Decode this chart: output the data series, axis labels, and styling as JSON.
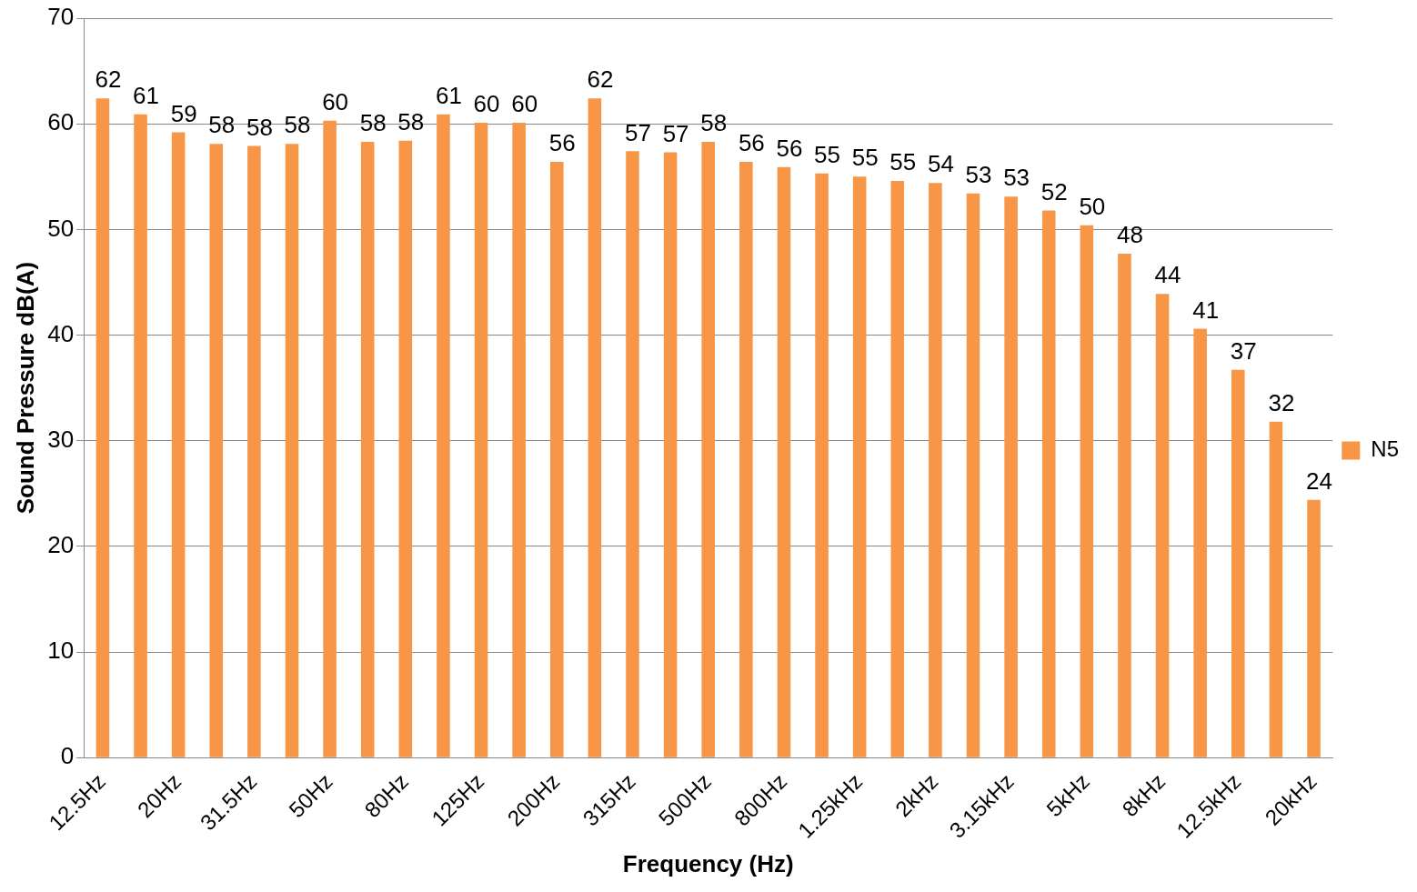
{
  "chart_data": {
    "type": "bar",
    "xlabel": "Frequency (Hz)",
    "ylabel": "Sound Pressure dB(A)",
    "categories": [
      "12.5Hz",
      null,
      "20Hz",
      null,
      "31.5Hz",
      null,
      "50Hz",
      null,
      "80Hz",
      null,
      "125Hz",
      null,
      "200Hz",
      null,
      "315Hz",
      null,
      "500Hz",
      null,
      "800Hz",
      null,
      "1.25kHz",
      null,
      "2kHz",
      null,
      "3.15kHz",
      null,
      "5kHz",
      null,
      "8kHz",
      null,
      "12.5kHz",
      null,
      "20kHz"
    ],
    "series": [
      {
        "name": "N5",
        "color": "#f79646",
        "values": [
          62.4,
          60.9,
          59.2,
          58.1,
          57.9,
          58.1,
          60.3,
          58.3,
          58.4,
          60.9,
          60.1,
          60.1,
          56.4,
          62.4,
          57.4,
          57.3,
          58.3,
          56.4,
          55.9,
          55.3,
          55.0,
          54.6,
          54.4,
          53.4,
          53.1,
          51.8,
          50.4,
          47.7,
          43.9,
          40.6,
          36.7,
          31.8,
          24.4
        ],
        "value_labels": [
          "62",
          "61",
          "59",
          "58",
          "58",
          "58",
          "60",
          "58",
          "58",
          "61",
          "60",
          "60",
          "56",
          "62",
          "57",
          "57",
          "58",
          "56",
          "56",
          "55",
          "55",
          "55",
          "54",
          "53",
          "53",
          "52",
          "50",
          "48",
          "44",
          "41",
          "37",
          "32",
          "24"
        ]
      }
    ],
    "ylim": [
      0,
      70
    ],
    "yticks": [
      0,
      10,
      20,
      30,
      40,
      50,
      60,
      70
    ],
    "grid": "y",
    "legend": "right"
  }
}
